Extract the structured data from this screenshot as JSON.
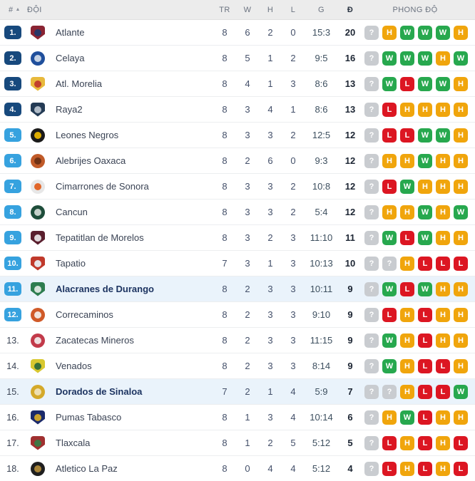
{
  "table": {
    "header": {
      "rank_label": "#",
      "sort_icon": "▲",
      "team_label": "ĐỘI",
      "played_label": "TR",
      "win_label": "W",
      "draw_label": "H",
      "loss_label": "L",
      "goals_label": "G",
      "points_label": "Đ",
      "form_label": "PHONG ĐỘ"
    },
    "rows": [
      {
        "rank": "1.",
        "rank_badge": "navy",
        "team": "Atlante",
        "logo": {
          "shape": "shield",
          "bg": "#8a2433",
          "fg": "#23396b"
        },
        "played": "8",
        "won": "6",
        "drawn": "2",
        "lost": "0",
        "goals": "15:3",
        "points": "20",
        "form": [
          "?",
          "H",
          "W",
          "W",
          "W",
          "H"
        ],
        "highlighted": false
      },
      {
        "rank": "2.",
        "rank_badge": "navy",
        "team": "Celaya",
        "logo": {
          "shape": "circle",
          "bg": "#1f4f9c",
          "fg": "#cfd9e8"
        },
        "played": "8",
        "won": "5",
        "drawn": "1",
        "lost": "2",
        "goals": "9:5",
        "points": "16",
        "form": [
          "?",
          "W",
          "W",
          "W",
          "H",
          "W"
        ],
        "highlighted": false
      },
      {
        "rank": "3.",
        "rank_badge": "navy",
        "team": "Atl. Morelia",
        "logo": {
          "shape": "shield",
          "bg": "#e8b93c",
          "fg": "#c0392b"
        },
        "played": "8",
        "won": "4",
        "drawn": "1",
        "lost": "3",
        "goals": "8:6",
        "points": "13",
        "form": [
          "?",
          "W",
          "L",
          "W",
          "W",
          "H"
        ],
        "highlighted": false
      },
      {
        "rank": "4.",
        "rank_badge": "navy",
        "team": "Raya2",
        "logo": {
          "shape": "shield",
          "bg": "#243b55",
          "fg": "#b9c3cf"
        },
        "played": "8",
        "won": "3",
        "drawn": "4",
        "lost": "1",
        "goals": "8:6",
        "points": "13",
        "form": [
          "?",
          "L",
          "H",
          "H",
          "H",
          "H"
        ],
        "highlighted": false
      },
      {
        "rank": "5.",
        "rank_badge": "blue",
        "team": "Leones Negros",
        "logo": {
          "shape": "circle",
          "bg": "#1a1a1a",
          "fg": "#e8b500"
        },
        "played": "8",
        "won": "3",
        "drawn": "3",
        "lost": "2",
        "goals": "12:5",
        "points": "12",
        "form": [
          "?",
          "L",
          "L",
          "W",
          "W",
          "H"
        ],
        "highlighted": false
      },
      {
        "rank": "6.",
        "rank_badge": "blue",
        "team": "Alebrijes Oaxaca",
        "logo": {
          "shape": "circle",
          "bg": "#c05a28",
          "fg": "#6b3014"
        },
        "played": "8",
        "won": "2",
        "drawn": "6",
        "lost": "0",
        "goals": "9:3",
        "points": "12",
        "form": [
          "?",
          "H",
          "H",
          "W",
          "H",
          "H"
        ],
        "highlighted": false
      },
      {
        "rank": "7.",
        "rank_badge": "blue",
        "team": "Cimarrones de Sonora",
        "logo": {
          "shape": "circle",
          "bg": "#e7e7e7",
          "fg": "#e06020"
        },
        "played": "8",
        "won": "3",
        "drawn": "3",
        "lost": "2",
        "goals": "10:8",
        "points": "12",
        "form": [
          "?",
          "L",
          "W",
          "H",
          "H",
          "H"
        ],
        "highlighted": false
      },
      {
        "rank": "8.",
        "rank_badge": "blue",
        "team": "Cancun",
        "logo": {
          "shape": "circle",
          "bg": "#1e4d3a",
          "fg": "#cfd8d2"
        },
        "played": "8",
        "won": "3",
        "drawn": "3",
        "lost": "2",
        "goals": "5:4",
        "points": "12",
        "form": [
          "?",
          "H",
          "H",
          "W",
          "H",
          "W"
        ],
        "highlighted": false
      },
      {
        "rank": "9.",
        "rank_badge": "blue",
        "team": "Tepatitlan de Morelos",
        "logo": {
          "shape": "shield",
          "bg": "#5a1f2e",
          "fg": "#e8e3e5"
        },
        "played": "8",
        "won": "3",
        "drawn": "2",
        "lost": "3",
        "goals": "11:10",
        "points": "11",
        "form": [
          "?",
          "W",
          "L",
          "W",
          "H",
          "H"
        ],
        "highlighted": false
      },
      {
        "rank": "10.",
        "rank_badge": "blue",
        "team": "Tapatio",
        "logo": {
          "shape": "shield",
          "bg": "#c0392b",
          "fg": "#e9ecf2"
        },
        "played": "7",
        "won": "3",
        "drawn": "1",
        "lost": "3",
        "goals": "10:13",
        "points": "10",
        "form": [
          "?",
          "?",
          "H",
          "L",
          "L",
          "L"
        ],
        "highlighted": false
      },
      {
        "rank": "11.",
        "rank_badge": "blue",
        "team": "Alacranes de Durango",
        "logo": {
          "shape": "shield",
          "bg": "#2e7d4f",
          "fg": "#dfe9e2"
        },
        "played": "8",
        "won": "2",
        "drawn": "3",
        "lost": "3",
        "goals": "10:11",
        "points": "9",
        "form": [
          "?",
          "W",
          "L",
          "W",
          "H",
          "H"
        ],
        "highlighted": true
      },
      {
        "rank": "12.",
        "rank_badge": "blue",
        "team": "Correcaminos",
        "logo": {
          "shape": "circle",
          "bg": "#d05a28",
          "fg": "#f2ece6"
        },
        "played": "8",
        "won": "2",
        "drawn": "3",
        "lost": "3",
        "goals": "9:10",
        "points": "9",
        "form": [
          "?",
          "L",
          "H",
          "L",
          "H",
          "H"
        ],
        "highlighted": false
      },
      {
        "rank": "13.",
        "rank_badge": "none",
        "team": "Zacatecas Mineros",
        "logo": {
          "shape": "circle",
          "bg": "#c23a4a",
          "fg": "#f0e8e8"
        },
        "played": "8",
        "won": "2",
        "drawn": "3",
        "lost": "3",
        "goals": "11:15",
        "points": "9",
        "form": [
          "?",
          "W",
          "H",
          "L",
          "H",
          "H"
        ],
        "highlighted": false
      },
      {
        "rank": "14.",
        "rank_badge": "none",
        "team": "Venados",
        "logo": {
          "shape": "shield",
          "bg": "#d8c830",
          "fg": "#2e6b3a"
        },
        "played": "8",
        "won": "2",
        "drawn": "3",
        "lost": "3",
        "goals": "8:14",
        "points": "9",
        "form": [
          "?",
          "W",
          "H",
          "L",
          "L",
          "H"
        ],
        "highlighted": false
      },
      {
        "rank": "15.",
        "rank_badge": "none",
        "team": "Dorados de Sinaloa",
        "logo": {
          "shape": "circle",
          "bg": "#d4a92a",
          "fg": "#efe2b8"
        },
        "played": "7",
        "won": "2",
        "drawn": "1",
        "lost": "4",
        "goals": "5:9",
        "points": "7",
        "form": [
          "?",
          "?",
          "H",
          "L",
          "L",
          "W"
        ],
        "highlighted": true
      },
      {
        "rank": "16.",
        "rank_badge": "none",
        "team": "Pumas Tabasco",
        "logo": {
          "shape": "shield",
          "bg": "#1b2a6b",
          "fg": "#d4a92a"
        },
        "played": "8",
        "won": "1",
        "drawn": "3",
        "lost": "4",
        "goals": "10:14",
        "points": "6",
        "form": [
          "?",
          "H",
          "W",
          "L",
          "H",
          "H"
        ],
        "highlighted": false
      },
      {
        "rank": "17.",
        "rank_badge": "none",
        "team": "Tlaxcala",
        "logo": {
          "shape": "shield",
          "bg": "#a03030",
          "fg": "#3a7a46"
        },
        "played": "8",
        "won": "1",
        "drawn": "2",
        "lost": "5",
        "goals": "5:12",
        "points": "5",
        "form": [
          "?",
          "L",
          "H",
          "L",
          "H",
          "L"
        ],
        "highlighted": false
      },
      {
        "rank": "18.",
        "rank_badge": "none",
        "team": "Atletico La Paz",
        "logo": {
          "shape": "circle",
          "bg": "#1f1f1f",
          "fg": "#b08a3a"
        },
        "played": "8",
        "won": "0",
        "drawn": "4",
        "lost": "4",
        "goals": "5:12",
        "points": "4",
        "form": [
          "?",
          "L",
          "H",
          "L",
          "H",
          "L"
        ],
        "highlighted": false
      }
    ]
  },
  "colors": {
    "rank_navy": "#17497d",
    "rank_blue": "#36a2df",
    "form_win": "#27a84e",
    "form_draw": "#f0a50c",
    "form_loss": "#dc1622",
    "form_unknown": "#c9ccd0",
    "highlight_row": "#eaf3fb"
  }
}
